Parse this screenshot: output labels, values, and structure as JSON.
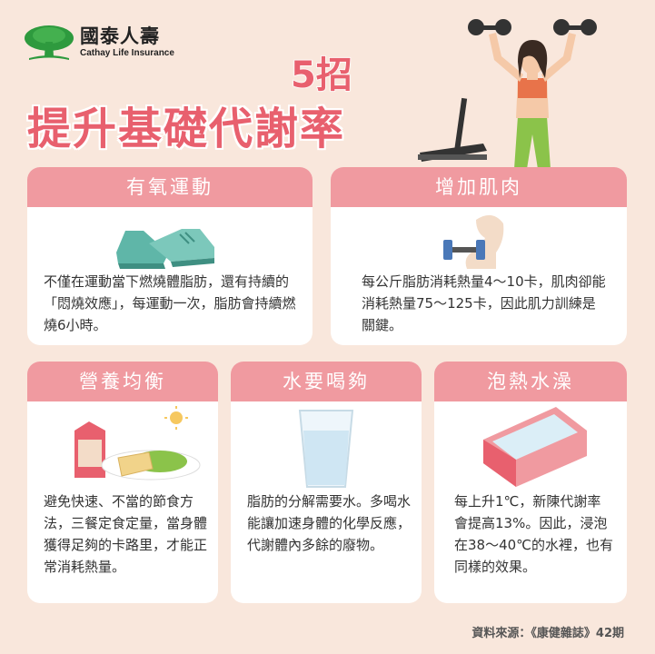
{
  "brand": {
    "name_zh": "國泰人壽",
    "name_en": "Cathay Life Insurance"
  },
  "headline": {
    "count": "5招",
    "title": "提升基礎代謝率"
  },
  "tips": [
    {
      "title": "有氧運動",
      "text": "不僅在運動當下燃燒體脂肪，還有持續的「悶燒效應」，每運動一次，脂肪會持續燃燒6小時。"
    },
    {
      "title": "增加肌肉",
      "text": "每公斤脂肪消耗熱量4～10卡，肌肉卻能消耗熱量75～125卡，因此肌力訓練是關鍵。"
    },
    {
      "title": "營養均衡",
      "text": "避免快速、不當的節食方法，三餐定食定量，當身體獲得足夠的卡路里，才能正常消耗熱量。"
    },
    {
      "title": "水要喝夠",
      "text": "脂肪的分解需要水。多喝水能讓加速身體的化學反應，代謝體內多餘的廢物。"
    },
    {
      "title": "泡熱水澡",
      "text": "每上升1℃，新陳代謝率會提高13%。因此，浸泡在38～40℃的水裡，也有同樣的效果。"
    }
  ],
  "source": "資料來源：《康健雜誌》42期",
  "colors": {
    "accent": "#e8606e",
    "card_header": "#f09aa0",
    "background": "#f9e7dc"
  }
}
